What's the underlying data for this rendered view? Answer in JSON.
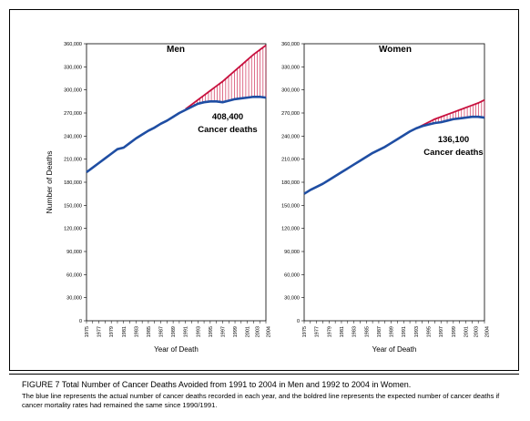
{
  "caption": {
    "title": "FIGURE 7   Total Number of Cancer Deaths Avoided from 1991 to 2004 in Men and 1992 to 2004 in Women.",
    "body": "The blue line represents the actual number of cancer deaths recorded in each year, and the boldred line represents the expected number of cancer deaths if cancer mortality rates had remained the same since 1990/1991."
  },
  "colors": {
    "actual": "#1f4ea3",
    "expected": "#c8103e",
    "border": "#000000"
  },
  "chart_data": [
    {
      "type": "line",
      "title": "Men",
      "xlabel": "Year of Death",
      "ylabel": "Number of Deaths",
      "ylim": [
        0,
        360000
      ],
      "xlim": [
        1975,
        2004
      ],
      "x_tick_labels": [
        "1975",
        "1977",
        "1979",
        "1981",
        "1983",
        "1985",
        "1987",
        "1989",
        "1991",
        "1993",
        "1995",
        "1997",
        "1999",
        "2001",
        "2003",
        "2004"
      ],
      "y_tick_labels": [
        "0",
        "30,000",
        "60,000",
        "90,000",
        "120,000",
        "150,000",
        "180,000",
        "210,000",
        "240,000",
        "270,000",
        "300,000",
        "330,000",
        "360,000"
      ],
      "annotation": {
        "value": "408,400",
        "text": "Cancer deaths"
      },
      "series": [
        {
          "name": "Actual",
          "x": [
            1975,
            1976,
            1977,
            1978,
            1979,
            1980,
            1981,
            1982,
            1983,
            1984,
            1985,
            1986,
            1987,
            1988,
            1989,
            1990,
            1991,
            1992,
            1993,
            1994,
            1995,
            1996,
            1997,
            1998,
            1999,
            2000,
            2001,
            2002,
            2003,
            2004
          ],
          "values": [
            193000,
            199000,
            205000,
            211000,
            217000,
            223000,
            225000,
            231000,
            237000,
            242000,
            247000,
            251000,
            256000,
            260000,
            265000,
            270000,
            274000,
            278000,
            282000,
            284000,
            285000,
            285000,
            284000,
            286000,
            288000,
            289000,
            290000,
            291000,
            291000,
            290000
          ]
        },
        {
          "name": "Expected",
          "x": [
            1991,
            1992,
            1993,
            1994,
            1995,
            1996,
            1997,
            1998,
            1999,
            2000,
            2001,
            2002,
            2003,
            2004
          ],
          "values": [
            275000,
            281000,
            287000,
            293000,
            299000,
            305000,
            311000,
            318000,
            325000,
            332000,
            339000,
            346000,
            352000,
            358000
          ]
        }
      ]
    },
    {
      "type": "line",
      "title": "Women",
      "xlabel": "Year of Death",
      "ylabel": "",
      "ylim": [
        0,
        360000
      ],
      "xlim": [
        1975,
        2004
      ],
      "x_tick_labels": [
        "1975",
        "1977",
        "1979",
        "1981",
        "1983",
        "1985",
        "1987",
        "1989",
        "1991",
        "1993",
        "1995",
        "1997",
        "1999",
        "2001",
        "2003",
        "2004"
      ],
      "y_tick_labels": [
        "0",
        "30,000",
        "60,000",
        "90,000",
        "120,000",
        "150,000",
        "180,000",
        "210,000",
        "240,000",
        "270,000",
        "300,000",
        "330,000",
        "360,000"
      ],
      "annotation": {
        "value": "136,100",
        "text": "Cancer deaths"
      },
      "series": [
        {
          "name": "Actual",
          "x": [
            1975,
            1976,
            1977,
            1978,
            1979,
            1980,
            1981,
            1982,
            1983,
            1984,
            1985,
            1986,
            1987,
            1988,
            1989,
            1990,
            1991,
            1992,
            1993,
            1994,
            1995,
            1996,
            1997,
            1998,
            1999,
            2000,
            2001,
            2002,
            2003,
            2004
          ],
          "values": [
            165000,
            170000,
            174000,
            178000,
            183000,
            188000,
            193000,
            198000,
            203000,
            208000,
            213000,
            218000,
            222000,
            226000,
            231000,
            236000,
            241000,
            246000,
            250000,
            253000,
            255000,
            257000,
            258000,
            260000,
            262000,
            263000,
            264000,
            265000,
            265000,
            264000
          ]
        },
        {
          "name": "Expected",
          "x": [
            1992,
            1993,
            1994,
            1995,
            1996,
            1997,
            1998,
            1999,
            2000,
            2001,
            2002,
            2003,
            2004
          ],
          "values": [
            246000,
            250000,
            254000,
            258000,
            262000,
            265000,
            268000,
            271000,
            274000,
            277000,
            280000,
            283000,
            287000
          ]
        }
      ]
    }
  ]
}
